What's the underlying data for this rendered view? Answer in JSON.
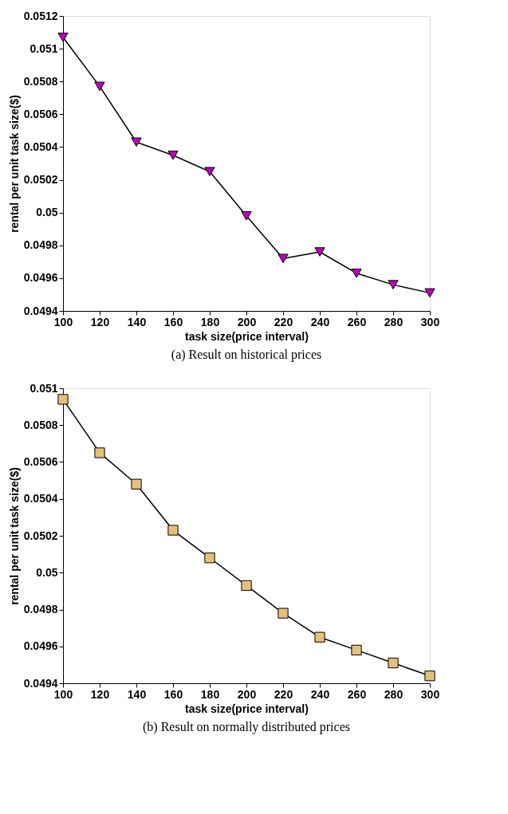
{
  "chart_data": [
    {
      "type": "line",
      "title": "(a) Result on historical prices",
      "xlabel": "task size(price interval)",
      "ylabel": "rental per unit task size($)",
      "x": [
        100,
        120,
        140,
        160,
        180,
        200,
        220,
        240,
        260,
        280,
        300
      ],
      "series": [
        {
          "color": "#c000c0",
          "values": [
            0.05107,
            0.05077,
            0.05043,
            0.05035,
            0.05025,
            0.04998,
            0.04972,
            0.04976,
            0.04963,
            0.04956,
            0.04951
          ]
        }
      ],
      "xlim": [
        100,
        300
      ],
      "xticks": [
        100,
        120,
        140,
        160,
        180,
        200,
        220,
        240,
        260,
        280,
        300
      ],
      "ylim": [
        0.0494,
        0.0512
      ],
      "yticks": [
        0.0494,
        0.0496,
        0.0498,
        0.05,
        0.0502,
        0.0504,
        0.0506,
        0.0508,
        0.051,
        0.0512
      ],
      "grid": false,
      "marker": "triangle",
      "line_style": "solid"
    },
    {
      "type": "line",
      "title": "(b) Result on normally distributed prices",
      "xlabel": "task size(price interval)",
      "ylabel": "rental per unit task size($)",
      "x": [
        100,
        120,
        140,
        160,
        180,
        200,
        220,
        240,
        260,
        280,
        300
      ],
      "series": [
        {
          "color": "#e6c07a",
          "values": [
            0.05094,
            0.05065,
            0.05048,
            0.05023,
            0.05008,
            0.04993,
            0.04978,
            0.04965,
            0.04958,
            0.04951,
            0.04944
          ]
        }
      ],
      "xlim": [
        100,
        300
      ],
      "xticks": [
        100,
        120,
        140,
        160,
        180,
        200,
        220,
        240,
        260,
        280,
        300
      ],
      "ylim": [
        0.0494,
        0.051
      ],
      "yticks": [
        0.0494,
        0.0496,
        0.0498,
        0.05,
        0.0502,
        0.0504,
        0.0506,
        0.0508,
        0.051
      ],
      "grid": false,
      "marker": "square",
      "line_style": "solid"
    }
  ]
}
